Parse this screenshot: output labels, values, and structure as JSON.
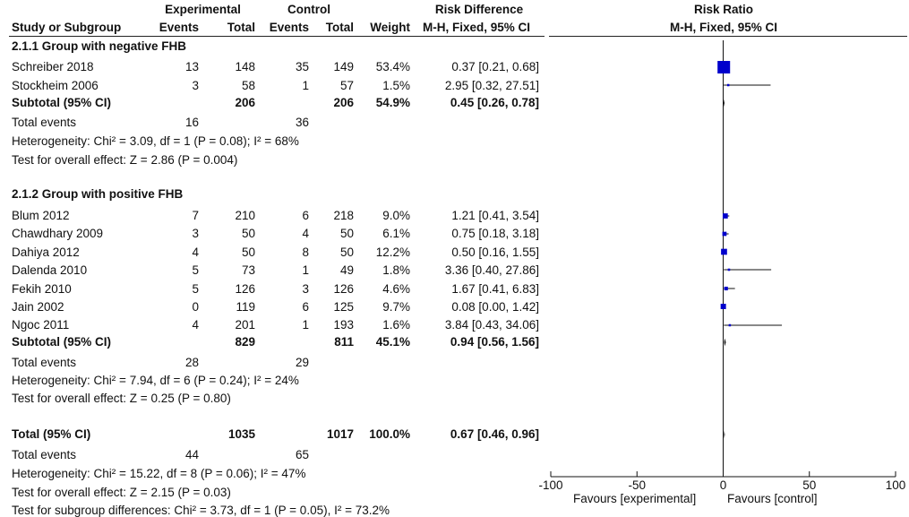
{
  "header": {
    "experimental": "Experimental",
    "control": "Control",
    "risk_difference": "Risk Difference",
    "risk_ratio": "Risk Ratio",
    "study_col": "Study or Subgroup",
    "events": "Events",
    "total": "Total",
    "weight": "Weight",
    "ci_method": "M-H, Fixed, 95% CI",
    "plot_method": "M-H, Fixed, 95% CI"
  },
  "groups": [
    {
      "title": "2.1.1 Group with negative FHB",
      "studies": [
        {
          "name": "Schreiber 2018",
          "e_events": "13",
          "e_total": "148",
          "c_events": "35",
          "c_total": "149",
          "weight": "53.4%",
          "ci": "0.37 [0.21, 0.68]"
        },
        {
          "name": "Stockheim 2006",
          "e_events": "3",
          "e_total": "58",
          "c_events": "1",
          "c_total": "57",
          "weight": "1.5%",
          "ci": "2.95 [0.32, 27.51]"
        }
      ],
      "subtotal": {
        "label": "Subtotal (95% CI)",
        "e_total": "206",
        "c_total": "206",
        "weight": "54.9%",
        "ci": "0.45 [0.26, 0.78]"
      },
      "events": {
        "label": "Total events",
        "e": "16",
        "c": "36"
      },
      "heterogeneity": "Heterogeneity: Chi² = 3.09, df = 1 (P = 0.08); I² = 68%",
      "overall": "Test for overall effect: Z = 2.86 (P = 0.004)"
    },
    {
      "title": "2.1.2 Group with positive FHB",
      "studies": [
        {
          "name": "Blum 2012",
          "e_events": "7",
          "e_total": "210",
          "c_events": "6",
          "c_total": "218",
          "weight": "9.0%",
          "ci": "1.21 [0.41, 3.54]"
        },
        {
          "name": "Chawdhary 2009",
          "e_events": "3",
          "e_total": "50",
          "c_events": "4",
          "c_total": "50",
          "weight": "6.1%",
          "ci": "0.75 [0.18, 3.18]"
        },
        {
          "name": "Dahiya 2012",
          "e_events": "4",
          "e_total": "50",
          "c_events": "8",
          "c_total": "50",
          "weight": "12.2%",
          "ci": "0.50 [0.16, 1.55]"
        },
        {
          "name": "Dalenda 2010",
          "e_events": "5",
          "e_total": "73",
          "c_events": "1",
          "c_total": "49",
          "weight": "1.8%",
          "ci": "3.36 [0.40, 27.86]"
        },
        {
          "name": "Fekih 2010",
          "e_events": "5",
          "e_total": "126",
          "c_events": "3",
          "c_total": "126",
          "weight": "4.6%",
          "ci": "1.67 [0.41, 6.83]"
        },
        {
          "name": "Jain 2002",
          "e_events": "0",
          "e_total": "119",
          "c_events": "6",
          "c_total": "125",
          "weight": "9.7%",
          "ci": "0.08 [0.00, 1.42]"
        },
        {
          "name": "Ngoc 2011",
          "e_events": "4",
          "e_total": "201",
          "c_events": "1",
          "c_total": "193",
          "weight": "1.6%",
          "ci": "3.84 [0.43, 34.06]"
        }
      ],
      "subtotal": {
        "label": "Subtotal (95% CI)",
        "e_total": "829",
        "c_total": "811",
        "weight": "45.1%",
        "ci": "0.94 [0.56, 1.56]"
      },
      "events": {
        "label": "Total events",
        "e": "28",
        "c": "29"
      },
      "heterogeneity": "Heterogeneity: Chi² = 7.94, df = 6 (P = 0.24); I² = 24%",
      "overall": "Test for overall effect: Z = 0.25 (P = 0.80)"
    }
  ],
  "total": {
    "label": "Total (95% CI)",
    "e_total": "1035",
    "c_total": "1017",
    "weight": "100.0%",
    "ci": "0.67 [0.46, 0.96]",
    "events_label": "Total events",
    "e_events": "44",
    "c_events": "65",
    "heterogeneity": "Heterogeneity: Chi² = 15.22, df = 8 (P = 0.06); I² = 47%",
    "overall": "Test for overall effect: Z = 2.15 (P = 0.03)",
    "subgroup": "Test for subgroup differences: Chi² = 3.73, df = 1 (P = 0.05), I² = 73.2%"
  },
  "chart_data": {
    "type": "forest",
    "xlim": [
      -100,
      100
    ],
    "ticks": [
      "-100",
      "-50",
      "0",
      "50",
      "100"
    ],
    "tick_values": [
      -100,
      -50,
      0,
      50,
      100
    ],
    "favours_left": "Favours [experimental]",
    "favours_right": "Favours [control]",
    "marker_color": "#0000cc",
    "studies": [
      {
        "name": "Schreiber 2018",
        "est": 0.37,
        "lo": 0.21,
        "hi": 0.68,
        "weight": 53.4
      },
      {
        "name": "Stockheim 2006",
        "est": 2.95,
        "lo": 0.32,
        "hi": 27.51,
        "weight": 1.5
      },
      {
        "name": "Blum 2012",
        "est": 1.21,
        "lo": 0.41,
        "hi": 3.54,
        "weight": 9.0
      },
      {
        "name": "Chawdhary 2009",
        "est": 0.75,
        "lo": 0.18,
        "hi": 3.18,
        "weight": 6.1
      },
      {
        "name": "Dahiya 2012",
        "est": 0.5,
        "lo": 0.16,
        "hi": 1.55,
        "weight": 12.2
      },
      {
        "name": "Dalenda 2010",
        "est": 3.36,
        "lo": 0.4,
        "hi": 27.86,
        "weight": 1.8
      },
      {
        "name": "Fekih 2010",
        "est": 1.67,
        "lo": 0.41,
        "hi": 6.83,
        "weight": 4.6
      },
      {
        "name": "Jain 2002",
        "est": 0.08,
        "lo": 0.0,
        "hi": 1.42,
        "weight": 9.7
      },
      {
        "name": "Ngoc 2011",
        "est": 3.84,
        "lo": 0.43,
        "hi": 34.06,
        "weight": 1.6
      }
    ],
    "summaries": [
      {
        "name": "Subtotal 2.1.1",
        "est": 0.45,
        "lo": 0.26,
        "hi": 0.78
      },
      {
        "name": "Subtotal 2.1.2",
        "est": 0.94,
        "lo": 0.56,
        "hi": 1.56
      },
      {
        "name": "Total",
        "est": 0.67,
        "lo": 0.46,
        "hi": 0.96
      }
    ]
  }
}
